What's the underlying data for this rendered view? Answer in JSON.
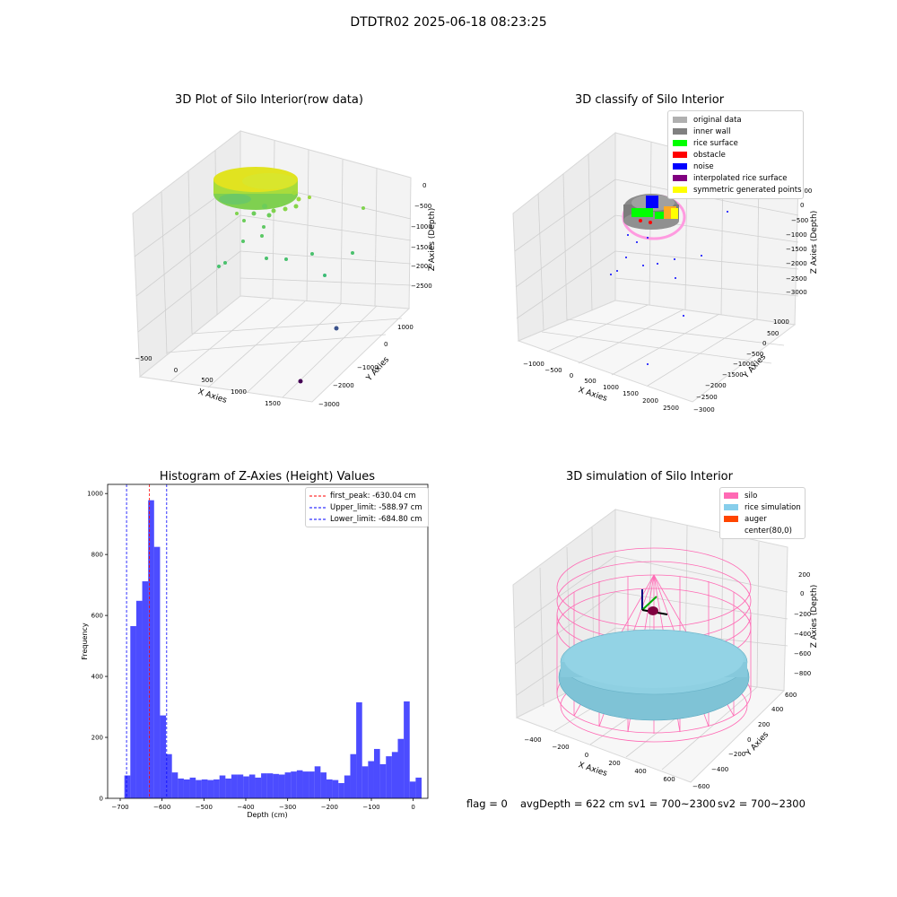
{
  "figure": {
    "suptitle": "DTDTR02 2025-06-18 08:23:25",
    "bottom_text": {
      "flag": "flag = 0",
      "avg": "avgDepth = 622 cm",
      "sv1": "sv1 = 700~2300",
      "sv2": "sv2 = 700~2300"
    }
  },
  "panels": {
    "raw": {
      "title": "3D Plot of Silo Interior(row data)",
      "xlabel": "X Axies",
      "ylabel": "Y Axies",
      "zlabel": "Z Axies (Depth)",
      "xticks": [
        "−500",
        "0",
        "500",
        "1000",
        "1500"
      ],
      "yticks": [
        "1000",
        "0",
        "−1000",
        "−2000",
        "−3000"
      ],
      "zticks": [
        "0",
        "−500",
        "−1000",
        "−1500",
        "−2000",
        "−2500"
      ]
    },
    "classify": {
      "title": "3D classify of Silo Interior",
      "xlabel": "X Axies",
      "ylabel": "Y Axies",
      "zlabel": "Z Axies (Depth)",
      "xticks": [
        "−1000",
        "−500",
        "0",
        "500",
        "1000",
        "1500",
        "2000",
        "2500"
      ],
      "yticks": [
        "1000",
        "500",
        "0",
        "−500",
        "−1000",
        "−1500",
        "−2000",
        "−2500",
        "−3000"
      ],
      "zticks": [
        "500",
        "0",
        "−500",
        "−1000",
        "−1500",
        "−2000",
        "−2500",
        "−3000"
      ],
      "legend": [
        {
          "label": "original data",
          "color": "#b0b0b0"
        },
        {
          "label": "inner wall",
          "color": "#808080"
        },
        {
          "label": "rice surface",
          "color": "#00ff00"
        },
        {
          "label": "obstacle",
          "color": "#ff0000"
        },
        {
          "label": "noise",
          "color": "#0000ff"
        },
        {
          "label": "interpolated rice surface",
          "color": "#800080"
        },
        {
          "label": "symmetric generated points",
          "color": "#ffff00"
        }
      ]
    },
    "simulation": {
      "title": "3D simulation of Silo Interior",
      "xlabel": "X Axies",
      "ylabel": "Y Axies",
      "zlabel": "Z Axies (Depth)",
      "xticks": [
        "−400",
        "−200",
        "0",
        "200",
        "400",
        "600"
      ],
      "yticks": [
        "600",
        "400",
        "200",
        "0",
        "−200",
        "−400",
        "−600"
      ],
      "zticks": [
        "200",
        "0",
        "−200",
        "−400",
        "−600",
        "−800"
      ],
      "legend": [
        {
          "label": "silo",
          "color": "#ff69b4"
        },
        {
          "label": "rice simulation",
          "color": "#87ceeb"
        },
        {
          "label": "auger",
          "color": "#ff4500"
        },
        {
          "label": "center(80,0)",
          "color": "#ffffff"
        }
      ]
    }
  },
  "chart_data": {
    "type": "bar",
    "title": "Histogram of Z-Axies (Height) Values",
    "xlabel": "Depth (cm)",
    "ylabel": "Frequency",
    "xlim": [
      -730,
      35
    ],
    "ylim": [
      0,
      1030
    ],
    "xticks": [
      -700,
      -600,
      -500,
      -400,
      -300,
      -200,
      -100,
      0
    ],
    "yticks": [
      0,
      200,
      400,
      600,
      800,
      1000
    ],
    "bin_start": -690,
    "bin_width": 14.2,
    "bar_color": "#0000ff",
    "values": [
      75,
      565,
      648,
      712,
      978,
      825,
      272,
      145,
      85,
      65,
      62,
      68,
      60,
      62,
      60,
      62,
      75,
      65,
      78,
      78,
      72,
      78,
      68,
      82,
      82,
      80,
      78,
      85,
      88,
      92,
      88,
      88,
      105,
      85,
      62,
      60,
      50,
      75,
      145,
      315,
      105,
      122,
      162,
      112,
      138,
      152,
      195,
      318,
      55,
      68
    ],
    "lines": [
      {
        "label": "first_peak: -630.04 cm",
        "value": -630.04,
        "color": "#ff0000"
      },
      {
        "label": "Upper_limit: -588.97 cm",
        "value": -588.97,
        "color": "#0000ff"
      },
      {
        "label": "Lower_limit: -684.80 cm",
        "value": -684.8,
        "color": "#0000ff"
      }
    ],
    "legend_position": "upper right"
  }
}
